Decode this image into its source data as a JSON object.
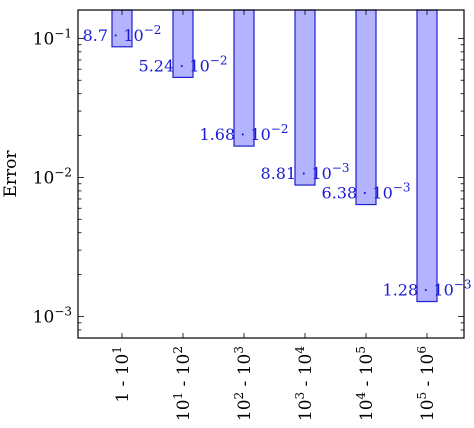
{
  "chart_data": {
    "type": "bar",
    "ylabel": "Error",
    "y_scale": "log",
    "ylim": [
      0.0007,
      0.16
    ],
    "y_ticks": [
      {
        "value": 0.1,
        "base": "10",
        "exp": "−1"
      },
      {
        "value": 0.01,
        "base": "10",
        "exp": "−2"
      },
      {
        "value": 0.001,
        "base": "10",
        "exp": "−3"
      }
    ],
    "categories": [
      {
        "mantissa_a": "1",
        "exp_a": "",
        "mantissa_b": "10",
        "exp_b": "1"
      },
      {
        "mantissa_a": "10",
        "exp_a": "1",
        "mantissa_b": "10",
        "exp_b": "2"
      },
      {
        "mantissa_a": "10",
        "exp_a": "2",
        "mantissa_b": "10",
        "exp_b": "3"
      },
      {
        "mantissa_a": "10",
        "exp_a": "3",
        "mantissa_b": "10",
        "exp_b": "4"
      },
      {
        "mantissa_a": "10",
        "exp_a": "4",
        "mantissa_b": "10",
        "exp_b": "5"
      },
      {
        "mantissa_a": "10",
        "exp_a": "5",
        "mantissa_b": "10",
        "exp_b": "6"
      }
    ],
    "values": [
      0.087,
      0.0524,
      0.0168,
      0.00881,
      0.00638,
      0.00128
    ],
    "value_labels": [
      {
        "mantissa": "8.7",
        "exp": "−2"
      },
      {
        "mantissa": "5.24",
        "exp": "−2"
      },
      {
        "mantissa": "1.68",
        "exp": "−2"
      },
      {
        "mantissa": "8.81",
        "exp": "−3"
      },
      {
        "mantissa": "6.38",
        "exp": "−3"
      },
      {
        "mantissa": "1.28",
        "exp": "−3"
      }
    ],
    "grid": false,
    "bar_fill": "#b3b3ff",
    "bar_stroke": "#2020d0",
    "label_color": "#1a1ad4"
  }
}
